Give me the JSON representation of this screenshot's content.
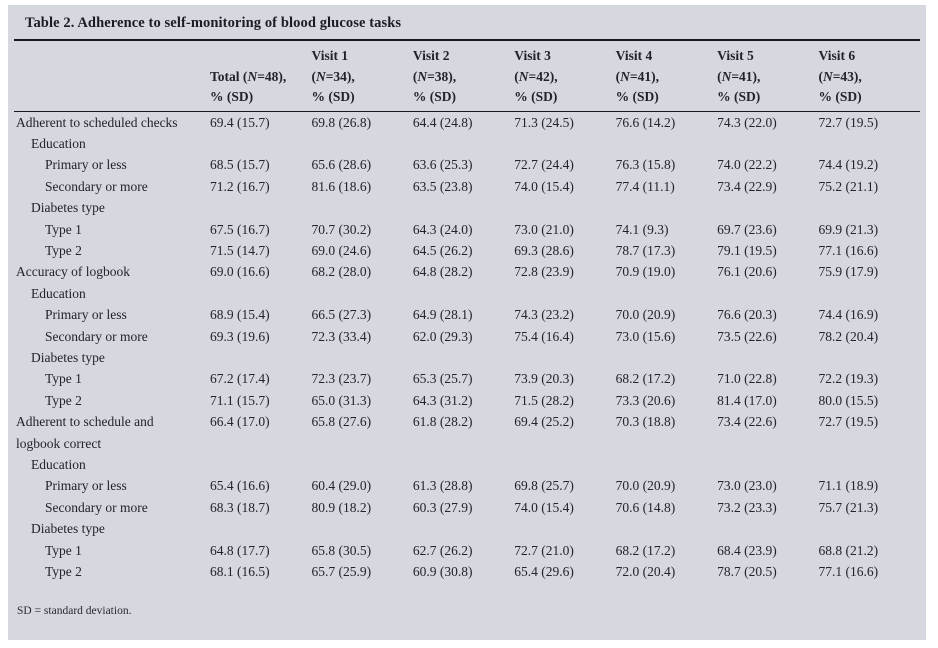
{
  "title": "Table 2. Adherence to self-monitoring of blood glucose tasks",
  "footnote": "SD = standard deviation.",
  "colors": {
    "panel_background": "#d5d8de",
    "text": "#23232b",
    "rule": "#17171d"
  },
  "table": {
    "columns": [
      {
        "visit": "",
        "n": "Total (N=48),",
        "unit": "% (SD)"
      },
      {
        "visit": "Visit 1",
        "n": "(N=34),",
        "unit": "% (SD)"
      },
      {
        "visit": "Visit 2",
        "n": "(N=38),",
        "unit": "% (SD)"
      },
      {
        "visit": "Visit 3",
        "n": "(N=42),",
        "unit": "% (SD)"
      },
      {
        "visit": "Visit 4",
        "n": "(N=41),",
        "unit": "% (SD)"
      },
      {
        "visit": "Visit 5",
        "n": "(N=41),",
        "unit": "% (SD)"
      },
      {
        "visit": "Visit 6",
        "n": "(N=43),",
        "unit": "% (SD)"
      }
    ],
    "rows": [
      {
        "label": "Adherent to scheduled checks",
        "indent": 0,
        "values": [
          "69.4 (15.7)",
          "69.8 (26.8)",
          "64.4 (24.8)",
          "71.3 (24.5)",
          "76.6 (14.2)",
          "74.3 (22.0)",
          "72.7 (19.5)"
        ]
      },
      {
        "label": "Education",
        "indent": 1,
        "values": []
      },
      {
        "label": "Primary or less",
        "indent": 2,
        "values": [
          "68.5 (15.7)",
          "65.6 (28.6)",
          "63.6 (25.3)",
          "72.7 (24.4)",
          "76.3 (15.8)",
          "74.0 (22.2)",
          "74.4 (19.2)"
        ]
      },
      {
        "label": "Secondary or more",
        "indent": 2,
        "values": [
          "71.2 (16.7)",
          "81.6 (18.6)",
          "63.5 (23.8)",
          "74.0 (15.4)",
          "77.4 (11.1)",
          "73.4 (22.9)",
          "75.2 (21.1)"
        ]
      },
      {
        "label": "Diabetes type",
        "indent": 1,
        "values": []
      },
      {
        "label": "Type 1",
        "indent": 2,
        "values": [
          "67.5 (16.7)",
          "70.7 (30.2)",
          "64.3 (24.0)",
          "73.0 (21.0)",
          "74.1 (9.3)",
          "69.7 (23.6)",
          "69.9 (21.3)"
        ]
      },
      {
        "label": "Type 2",
        "indent": 2,
        "values": [
          "71.5 (14.7)",
          "69.0 (24.6)",
          "64.5 (26.2)",
          "69.3 (28.6)",
          "78.7 (17.3)",
          "79.1 (19.5)",
          "77.1 (16.6)"
        ]
      },
      {
        "label": "Accuracy of logbook",
        "indent": 0,
        "values": [
          "69.0 (16.6)",
          "68.2 (28.0)",
          "64.8 (28.2)",
          "72.8 (23.9)",
          "70.9 (19.0)",
          "76.1 (20.6)",
          "75.9 (17.9)"
        ]
      },
      {
        "label": "Education",
        "indent": 1,
        "values": []
      },
      {
        "label": "Primary or less",
        "indent": 2,
        "values": [
          "68.9 (15.4)",
          "66.5 (27.3)",
          "64.9 (28.1)",
          "74.3 (23.2)",
          "70.0 (20.9)",
          "76.6 (20.3)",
          "74.4 (16.9)"
        ]
      },
      {
        "label": "Secondary or more",
        "indent": 2,
        "values": [
          "69.3 (19.6)",
          "72.3 (33.4)",
          "62.0 (29.3)",
          "75.4 (16.4)",
          "73.0 (15.6)",
          "73.5 (22.6)",
          "78.2 (20.4)"
        ]
      },
      {
        "label": "Diabetes type",
        "indent": 1,
        "values": []
      },
      {
        "label": "Type 1",
        "indent": 2,
        "values": [
          "67.2 (17.4)",
          "72.3 (23.7)",
          "65.3 (25.7)",
          "73.9 (20.3)",
          "68.2 (17.2)",
          "71.0 (22.8)",
          "72.2 (19.3)"
        ]
      },
      {
        "label": "Type 2",
        "indent": 2,
        "values": [
          "71.1 (15.7)",
          "65.0 (31.3)",
          "64.3 (31.2)",
          "71.5 (28.2)",
          "73.3 (20.6)",
          "81.4 (17.0)",
          "80.0 (15.5)"
        ]
      },
      {
        "label": "Adherent to schedule and\nlogbook correct",
        "indent": 0,
        "values": [
          "66.4 (17.0)",
          "65.8 (27.6)",
          "61.8 (28.2)",
          "69.4 (25.2)",
          "70.3 (18.8)",
          "73.4 (22.6)",
          "72.7 (19.5)"
        ]
      },
      {
        "label": "Education",
        "indent": 1,
        "values": []
      },
      {
        "label": "Primary or less",
        "indent": 2,
        "values": [
          "65.4 (16.6)",
          "60.4 (29.0)",
          "61.3 (28.8)",
          "69.8 (25.7)",
          "70.0 (20.9)",
          "73.0 (23.0)",
          "71.1 (18.9)"
        ]
      },
      {
        "label": "Secondary or more",
        "indent": 2,
        "values": [
          "68.3 (18.7)",
          "80.9 (18.2)",
          "60.3 (27.9)",
          "74.0 (15.4)",
          "70.6 (14.8)",
          "73.2 (23.3)",
          "75.7 (21.3)"
        ]
      },
      {
        "label": "Diabetes type",
        "indent": 1,
        "values": []
      },
      {
        "label": "Type 1",
        "indent": 2,
        "values": [
          "64.8 (17.7)",
          "65.8 (30.5)",
          "62.7 (26.2)",
          "72.7 (21.0)",
          "68.2 (17.2)",
          "68.4 (23.9)",
          "68.8 (21.2)"
        ]
      },
      {
        "label": "Type 2",
        "indent": 2,
        "values": [
          "68.1 (16.5)",
          "65.7 (25.9)",
          "60.9 (30.8)",
          "65.4 (29.6)",
          "72.0 (20.4)",
          "78.7 (20.5)",
          "77.1 (16.6)"
        ]
      }
    ]
  }
}
